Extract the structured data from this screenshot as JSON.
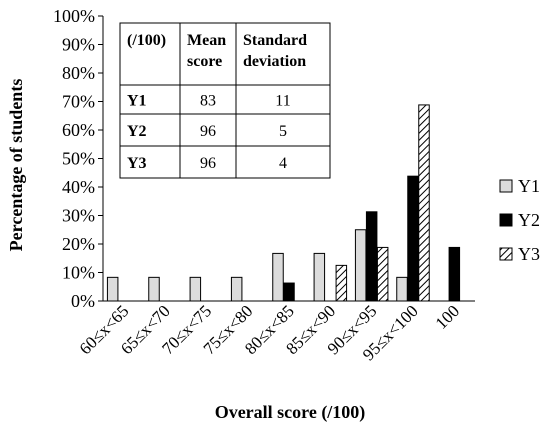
{
  "chart_data": {
    "type": "bar",
    "title": "",
    "xlabel": "Overall score (/100)",
    "ylabel": "Percentage of students",
    "ylim": [
      0,
      100
    ],
    "yticks": [
      0,
      10,
      20,
      30,
      40,
      50,
      60,
      70,
      80,
      90,
      100
    ],
    "ytick_labels": [
      "0%",
      "10%",
      "20%",
      "30%",
      "40%",
      "50%",
      "60%",
      "70%",
      "80%",
      "90%",
      "100%"
    ],
    "grid": false,
    "legend_position": "right",
    "categories": [
      "60≤x<65",
      "65≤x<70",
      "70≤x<75",
      "75≤x<80",
      "80≤x<85",
      "85≤x<90",
      "90≤x<95",
      "95≤x<100",
      "100"
    ],
    "series": [
      {
        "name": "Y1",
        "fill": "light-grey",
        "values": [
          8.3,
          8.3,
          8.3,
          8.3,
          16.7,
          16.7,
          25.0,
          8.3,
          0
        ]
      },
      {
        "name": "Y2",
        "fill": "black",
        "values": [
          0,
          0,
          0,
          0,
          6.3,
          0,
          31.3,
          43.8,
          18.8
        ]
      },
      {
        "name": "Y3",
        "fill": "diagonal-hatch",
        "values": [
          0,
          0,
          0,
          0,
          0,
          12.5,
          18.8,
          68.8,
          0
        ]
      }
    ],
    "table": {
      "header": [
        "(/100)",
        "Mean score",
        "Standard deviation"
      ],
      "rows": [
        [
          "Y1",
          "83",
          "11"
        ],
        [
          "Y2",
          "96",
          "5"
        ],
        [
          "Y3",
          "96",
          "4"
        ]
      ]
    }
  },
  "colors": {
    "y1_fill": "#dcdcdc",
    "y2_fill": "#000000",
    "hatch_line": "#000000",
    "axis": "#000000"
  }
}
